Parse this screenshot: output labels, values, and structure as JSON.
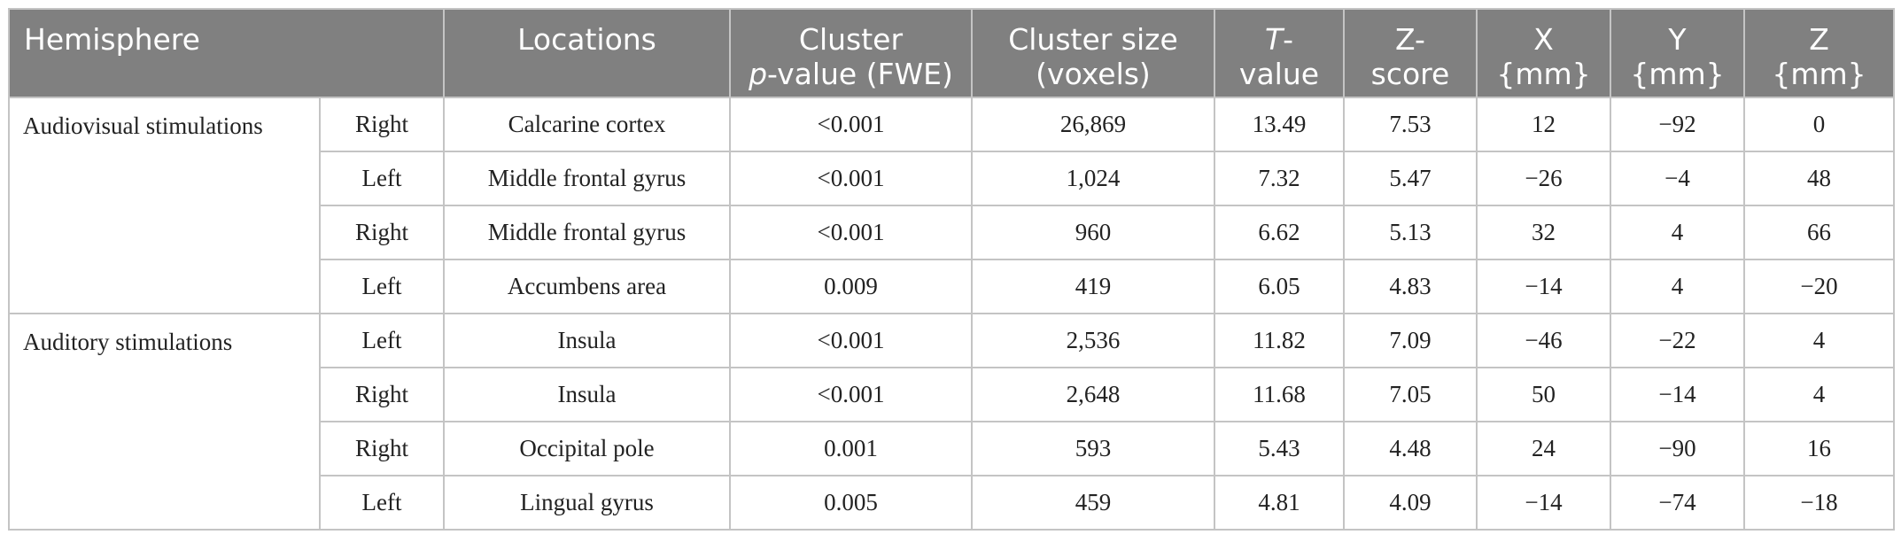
{
  "headers": {
    "hemisphere": "Hemisphere",
    "locations": "Locations",
    "cluster_p_line1": "Cluster",
    "cluster_p_italic": "p",
    "cluster_p_rest": "-value (FWE)",
    "cluster_size_line1": "Cluster size",
    "cluster_size_line2": "(voxels)",
    "t_italic": "T",
    "t_rest": "-",
    "t_line2": "value",
    "z_line1": "Z-",
    "z_line2": "score",
    "x_line1": "X",
    "x_line2": "{mm}",
    "y_line1": "Y",
    "y_line2": "{mm}",
    "zmm_line1": "Z",
    "zmm_line2": "{mm}"
  },
  "groups": [
    {
      "label": "Audiovisual stimulations",
      "rows": [
        {
          "side": "Right",
          "location": "Calcarine cortex",
          "p": "<0.001",
          "size": "26,869",
          "t": "13.49",
          "z": "7.53",
          "x": "12",
          "y": "−92",
          "zmm": "0"
        },
        {
          "side": "Left",
          "location": "Middle frontal gyrus",
          "p": "<0.001",
          "size": "1,024",
          "t": "7.32",
          "z": "5.47",
          "x": "−26",
          "y": "−4",
          "zmm": "48"
        },
        {
          "side": "Right",
          "location": "Middle frontal gyrus",
          "p": "<0.001",
          "size": "960",
          "t": "6.62",
          "z": "5.13",
          "x": "32",
          "y": "4",
          "zmm": "66"
        },
        {
          "side": "Left",
          "location": "Accumbens area",
          "p": "0.009",
          "size": "419",
          "t": "6.05",
          "z": "4.83",
          "x": "−14",
          "y": "4",
          "zmm": "−20"
        }
      ]
    },
    {
      "label": "Auditory stimulations",
      "rows": [
        {
          "side": "Left",
          "location": "Insula",
          "p": "<0.001",
          "size": "2,536",
          "t": "11.82",
          "z": "7.09",
          "x": "−46",
          "y": "−22",
          "zmm": "4"
        },
        {
          "side": "Right",
          "location": "Insula",
          "p": "<0.001",
          "size": "2,648",
          "t": "11.68",
          "z": "7.05",
          "x": "50",
          "y": "−14",
          "zmm": "4"
        },
        {
          "side": "Right",
          "location": "Occipital pole",
          "p": "0.001",
          "size": "593",
          "t": "5.43",
          "z": "4.48",
          "x": "24",
          "y": "−90",
          "zmm": "16"
        },
        {
          "side": "Left",
          "location": "Lingual gyrus",
          "p": "0.005",
          "size": "459",
          "t": "4.81",
          "z": "4.09",
          "x": "−14",
          "y": "−74",
          "zmm": "−18"
        }
      ]
    }
  ]
}
